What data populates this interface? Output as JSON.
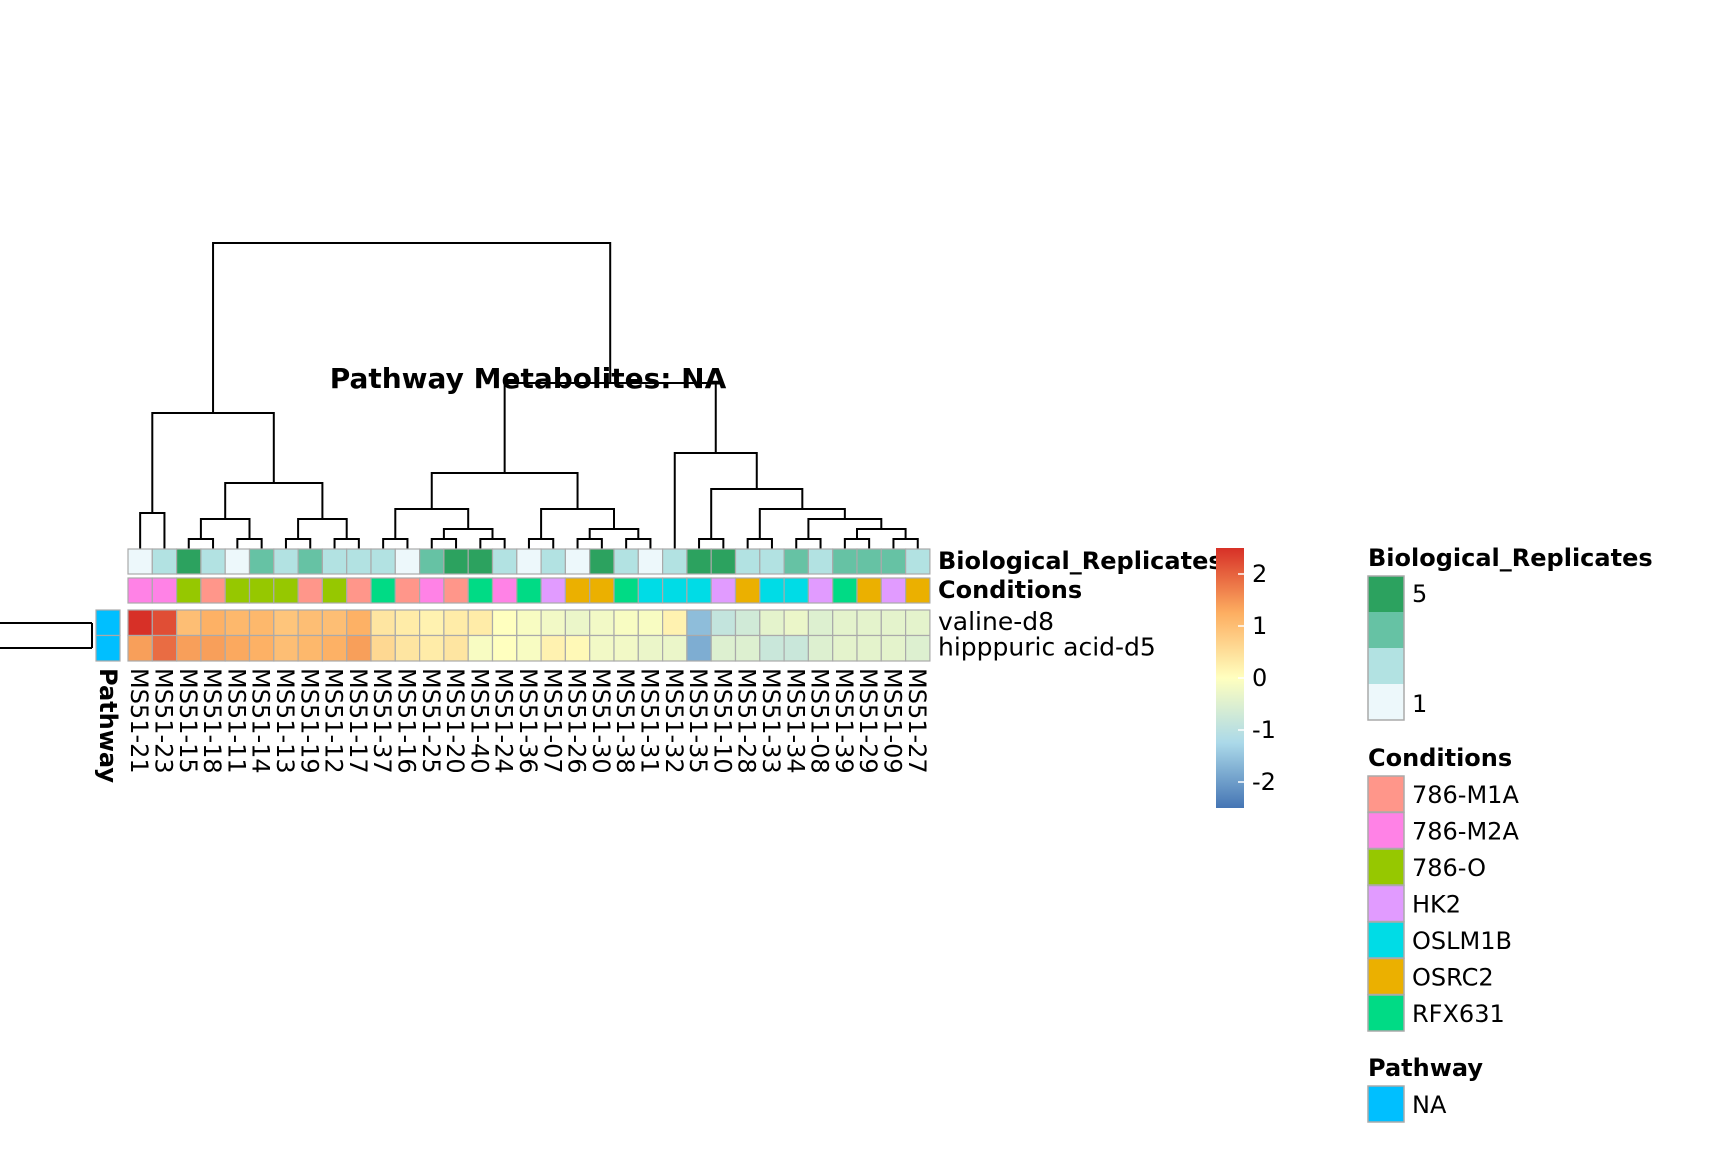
{
  "chart_data": {
    "type": "heatmap",
    "title": "Pathway  Metabolites:  NA",
    "columns": [
      "MS51-21",
      "MS51-23",
      "MS51-15",
      "MS51-18",
      "MS51-11",
      "MS51-14",
      "MS51-13",
      "MS51-19",
      "MS51-12",
      "MS51-17",
      "MS51-37",
      "MS51-16",
      "MS51-25",
      "MS51-20",
      "MS51-40",
      "MS51-24",
      "MS51-36",
      "MS51-07",
      "MS51-26",
      "MS51-30",
      "MS51-38",
      "MS51-31",
      "MS51-32",
      "MS51-35",
      "MS51-10",
      "MS51-28",
      "MS51-33",
      "MS51-34",
      "MS51-08",
      "MS51-39",
      "MS51-29",
      "MS51-09",
      "MS51-27"
    ],
    "rows": [
      "valine-d8",
      "hipppuric acid-d5"
    ],
    "values": [
      [
        2.5,
        2.2,
        1.0,
        1.2,
        1.1,
        1.1,
        0.9,
        1.0,
        1.0,
        1.2,
        0.4,
        0.3,
        0.2,
        0.3,
        0.3,
        0.0,
        -0.1,
        -0.2,
        -0.3,
        -0.2,
        -0.1,
        -0.1,
        0.2,
        -1.6,
        -0.9,
        -0.7,
        -0.4,
        -0.3,
        -0.5,
        -0.4,
        -0.4,
        -0.4,
        -0.4
      ],
      [
        1.4,
        1.9,
        1.4,
        1.4,
        1.3,
        1.2,
        1.0,
        1.1,
        1.2,
        1.4,
        0.6,
        0.4,
        0.3,
        0.4,
        -0.1,
        0.0,
        -0.1,
        0.2,
        0.1,
        -0.2,
        -0.2,
        -0.3,
        -0.3,
        -1.8,
        -0.5,
        -0.5,
        -0.8,
        -0.8,
        -0.5,
        -0.4,
        -0.4,
        -0.4,
        -0.5
      ]
    ],
    "color_scale": {
      "range": [
        -2.5,
        2.5
      ],
      "stops": [
        "#4575b4",
        "#abd9e9",
        "#ffffbf",
        "#fdae61",
        "#d73027"
      ],
      "ticks": [
        2,
        1,
        0,
        -1,
        -2
      ]
    },
    "column_annotations": [
      {
        "label": "Biological_Replicates",
        "values": [
          1,
          2,
          5,
          3,
          1,
          4,
          3,
          4,
          2,
          2,
          2,
          1,
          4,
          5,
          5,
          3,
          1,
          2,
          1,
          5,
          3,
          1,
          2,
          5,
          5,
          3,
          3,
          4,
          3,
          4,
          4,
          4,
          2
        ]
      },
      {
        "label": "Conditions",
        "values": [
          "786-M2A",
          "786-M2A",
          "786-O",
          "786-M1A",
          "786-O",
          "786-O",
          "786-O",
          "786-M1A",
          "786-O",
          "786-M1A",
          "RFX631",
          "786-M1A",
          "786-M2A",
          "786-M1A",
          "RFX631",
          "786-M2A",
          "RFX631",
          "HK2",
          "OSRC2",
          "OSRC2",
          "RFX631",
          "OSLM1B",
          "OSLM1B",
          "OSLM1B",
          "HK2",
          "OSRC2",
          "OSLM1B",
          "OSLM1B",
          "HK2",
          "RFX631",
          "OSRC2",
          "HK2",
          "OSRC2"
        ]
      }
    ],
    "row_annotation": {
      "label": "Pathway",
      "values": [
        "NA",
        "NA"
      ]
    },
    "legends": [
      {
        "title": "Biological_Replicates",
        "type": "gradient",
        "labels": [
          "5",
          "1"
        ],
        "colors": [
          "#2ca25f",
          "#66c2a4",
          "#b2e2e2",
          "#edf8fb"
        ]
      },
      {
        "title": "Conditions",
        "type": "categorical",
        "items": [
          {
            "label": "786-M1A",
            "color": "#ff968a"
          },
          {
            "label": "786-M2A",
            "color": "#ff82e6"
          },
          {
            "label": "786-O",
            "color": "#96c800"
          },
          {
            "label": "HK2",
            "color": "#e19bff"
          },
          {
            "label": "OSLM1B",
            "color": "#00dce6"
          },
          {
            "label": "OSRC2",
            "color": "#ebb000"
          },
          {
            "label": "RFX631",
            "color": "#00db85"
          }
        ]
      },
      {
        "title": "Pathway",
        "type": "categorical",
        "items": [
          {
            "label": "NA",
            "color": "#00bfff"
          }
        ]
      }
    ],
    "legend_position": "right"
  }
}
